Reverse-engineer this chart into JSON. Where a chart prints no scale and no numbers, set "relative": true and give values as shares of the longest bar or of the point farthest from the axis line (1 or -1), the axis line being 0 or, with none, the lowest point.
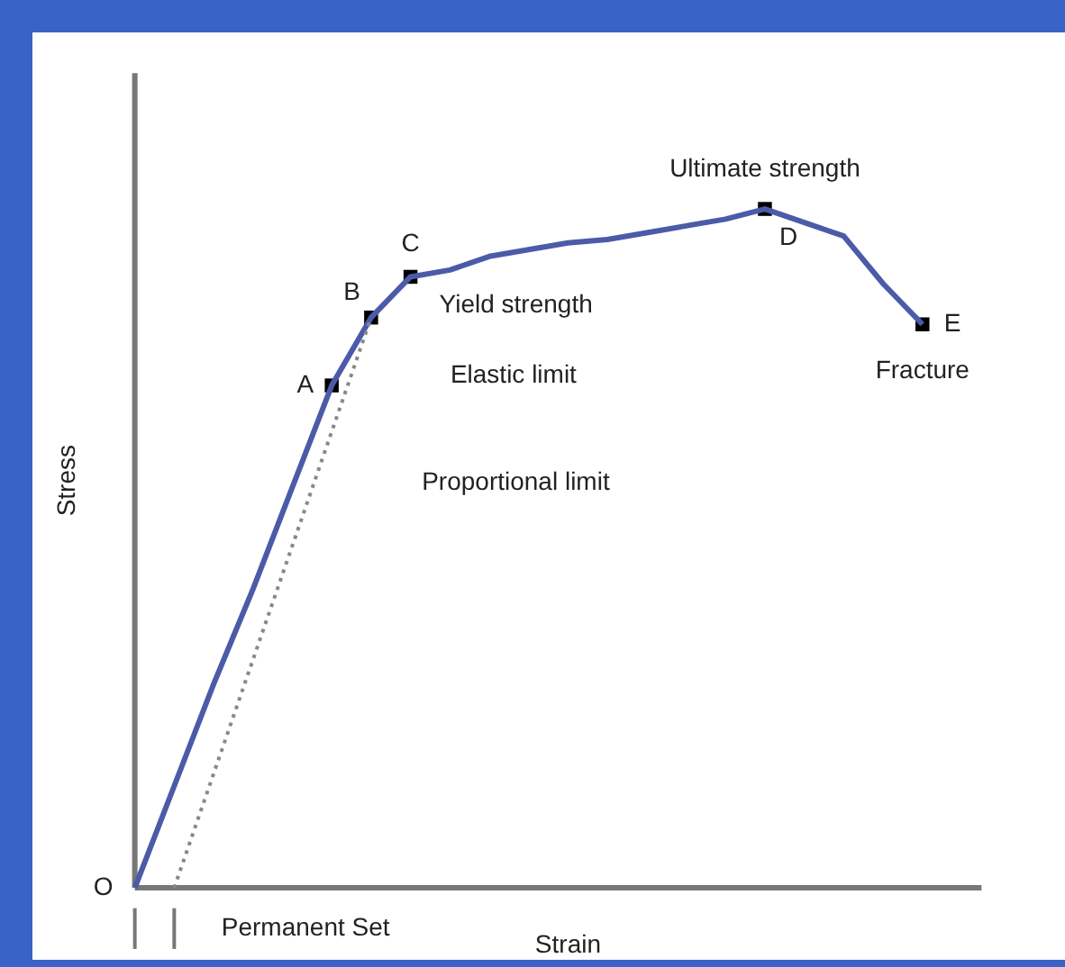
{
  "chart_data": {
    "type": "line",
    "relative": true,
    "xlabel": "Strain",
    "ylabel": "Stress",
    "categories": [
      null,
      null,
      null,
      null,
      null,
      null,
      null,
      null,
      null,
      null,
      null,
      null,
      null,
      null,
      null,
      null,
      null,
      null,
      null,
      null,
      null
    ],
    "series": [
      {
        "color": "#4b5ba8",
        "values": [
          0,
          0.15,
          0.3,
          0.44,
          0.59,
          0.74,
          0.84,
          0.9,
          0.91,
          0.93,
          0.94,
          0.95,
          0.955,
          0.965,
          0.975,
          0.985,
          1.0,
          0.98,
          0.96,
          0.89,
          0.83
        ]
      },
      {
        "color": "#888888",
        "line_style": "dotted",
        "values": [
          null,
          0,
          null,
          null,
          null,
          null,
          0.84,
          null,
          null,
          null,
          null,
          null,
          null,
          null,
          null,
          null,
          null,
          null,
          null,
          null,
          null
        ]
      }
    ],
    "annotations": [
      "O",
      "A",
      "B",
      "C",
      "D",
      "E",
      "Ultimate strength",
      "Fracture",
      "Yield strength",
      "Elastic limit",
      "Proportional limit",
      "Permanent Set"
    ]
  }
}
